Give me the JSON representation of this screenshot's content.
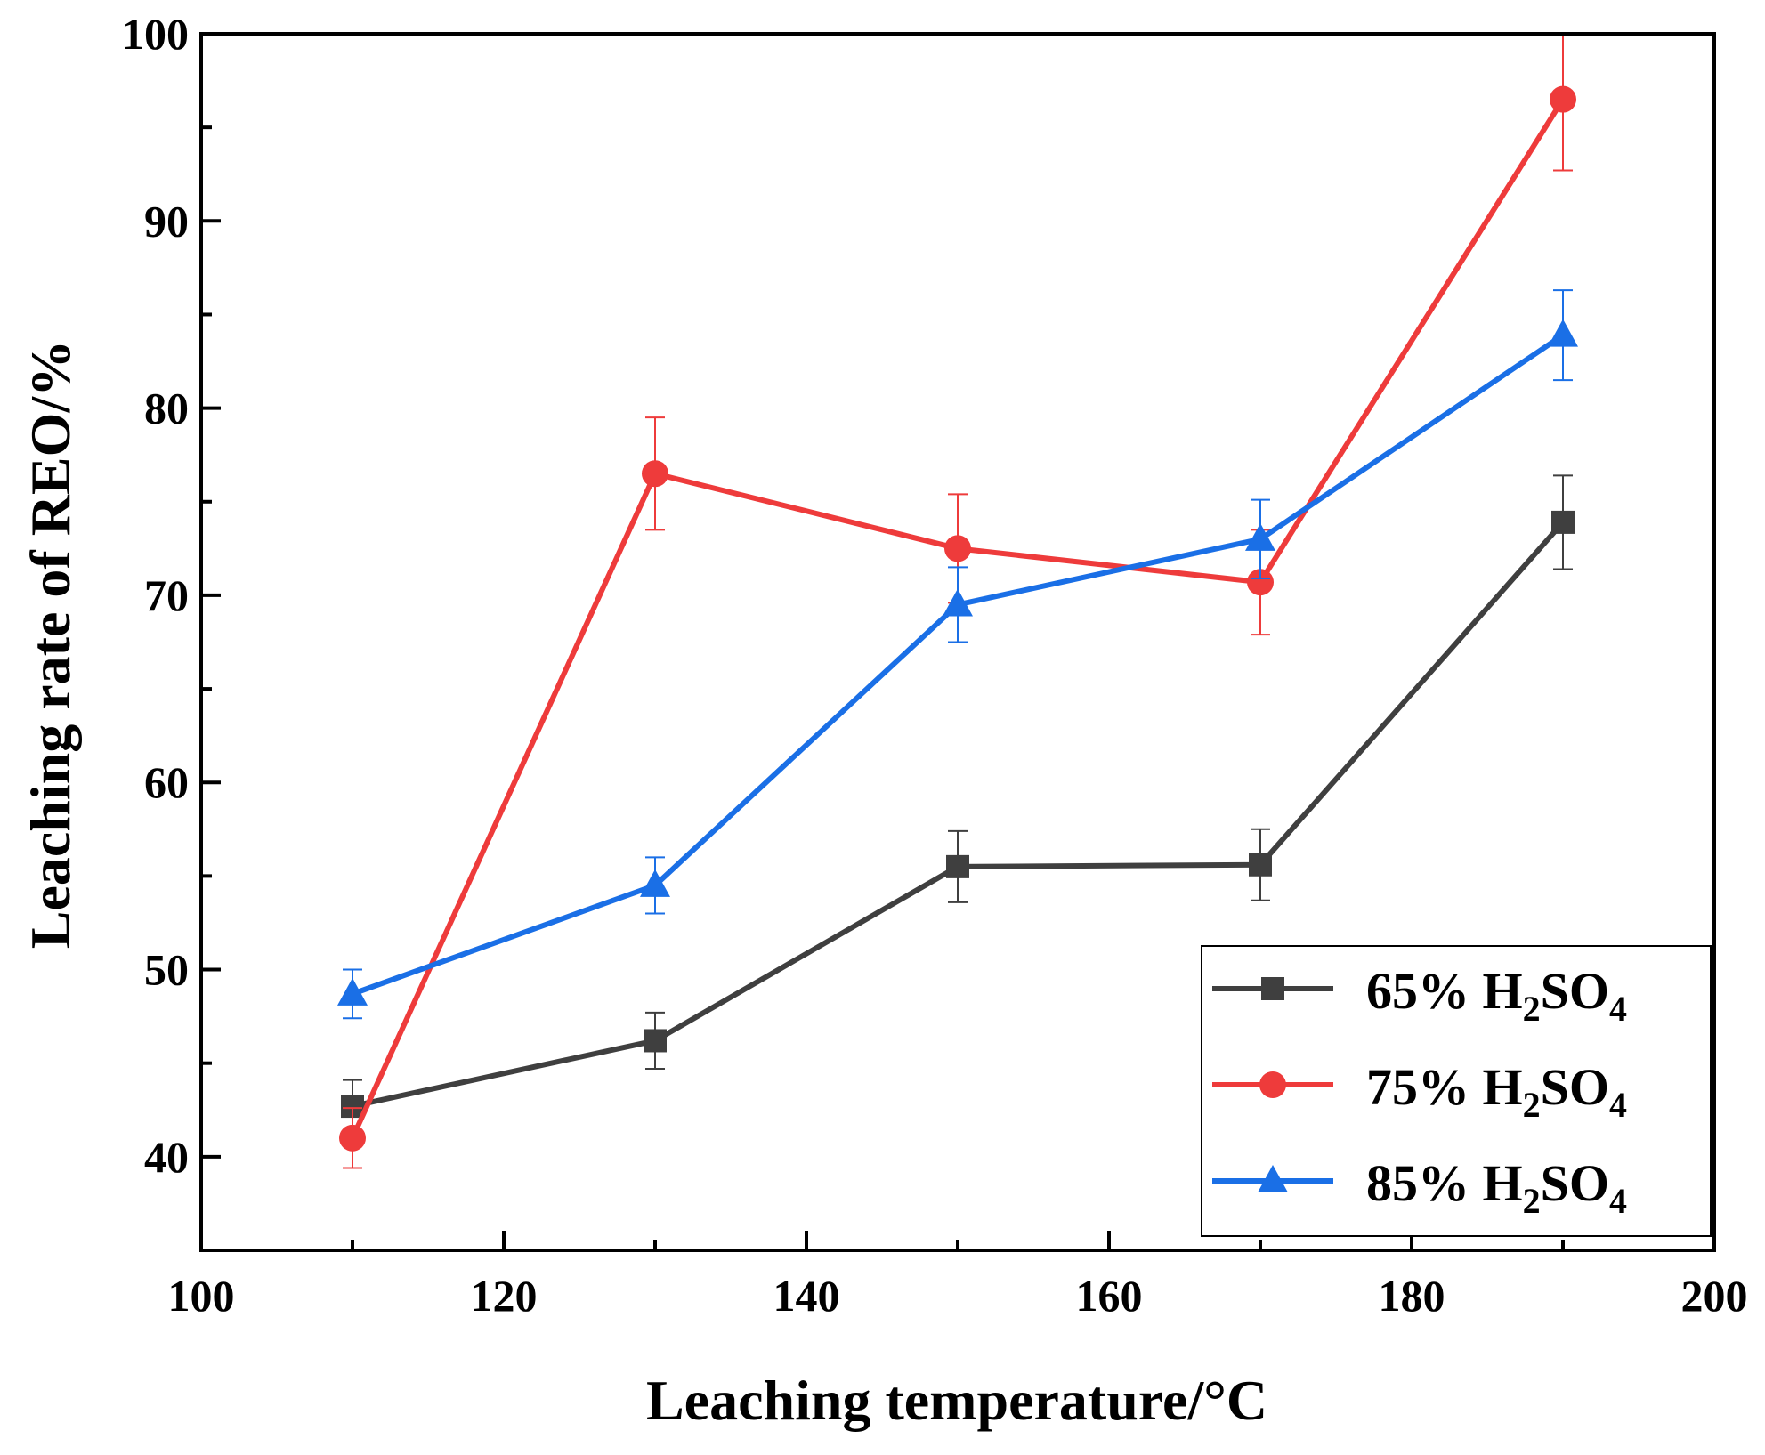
{
  "chart_data": {
    "type": "line",
    "title": "",
    "xlabel": "Leaching temperature/°C",
    "ylabel": "Leaching rate of REO/%",
    "xlim": [
      100,
      200
    ],
    "ylim": [
      35,
      100
    ],
    "xticks": [
      100,
      120,
      140,
      160,
      180,
      200
    ],
    "yticks": [
      40,
      50,
      60,
      70,
      80,
      90,
      100
    ],
    "x": [
      110,
      130,
      150,
      170,
      190
    ],
    "grid": false,
    "legend_position": "bottom-right",
    "series": [
      {
        "name": "65% H2SO4",
        "label_main": "65% H",
        "label_sub1": "2",
        "label_mid": "SO",
        "label_sub2": "4",
        "color": "#3f3f3f",
        "marker": "square",
        "values": [
          42.7,
          46.2,
          55.5,
          55.6,
          73.9
        ],
        "errors": [
          1.4,
          1.5,
          1.9,
          1.9,
          2.5
        ]
      },
      {
        "name": "75% H2SO4",
        "label_main": "75% H",
        "label_sub1": "2",
        "label_mid": "SO",
        "label_sub2": "4",
        "color": "#ee3b3b",
        "marker": "circle",
        "values": [
          41.0,
          76.5,
          72.5,
          70.7,
          96.5
        ],
        "errors": [
          1.6,
          3.0,
          2.9,
          2.8,
          3.8
        ]
      },
      {
        "name": "85%  H2SO4",
        "label_main": "85%  H",
        "label_sub1": "2",
        "label_mid": "SO",
        "label_sub2": "4",
        "color": "#1a6fe6",
        "marker": "triangle",
        "values": [
          48.7,
          54.5,
          69.5,
          73.0,
          83.9
        ],
        "errors": [
          1.3,
          1.5,
          2.0,
          2.1,
          2.4
        ]
      }
    ]
  }
}
